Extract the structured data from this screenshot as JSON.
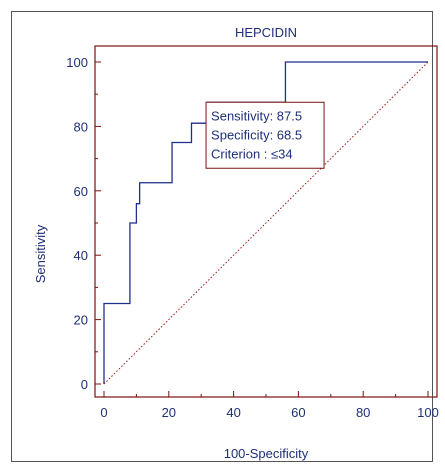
{
  "chart_data": {
    "type": "line",
    "title": "HEPCIDIN",
    "xlabel": "100-Specificity",
    "ylabel": "Sensitivity",
    "xlim": [
      0,
      100
    ],
    "ylim": [
      0,
      100
    ],
    "xticks": [
      0,
      20,
      40,
      60,
      80,
      100
    ],
    "yticks": [
      0,
      20,
      40,
      60,
      80,
      100
    ],
    "grid": false,
    "series": [
      {
        "style": "step",
        "color": "#1f2f8c",
        "x": [
          0,
          0,
          8,
          8,
          10,
          10,
          11,
          11,
          21,
          21,
          27,
          27,
          32,
          32,
          56,
          56,
          100
        ],
        "y": [
          0,
          25,
          25,
          50,
          50,
          56,
          56,
          62.5,
          62.5,
          75,
          75,
          81,
          81,
          87.5,
          87.5,
          100,
          100
        ]
      },
      {
        "style": "dotted",
        "color": "#a01818",
        "x": [
          0,
          100
        ],
        "y": [
          0,
          100
        ]
      }
    ],
    "annotation": {
      "lines": [
        "Sensitivity: 87.5",
        "Specificity: 68.5",
        "Criterion : ≤34"
      ],
      "anchor_x": 31.5,
      "anchor_y": 87.5
    },
    "colors": {
      "axis": "#7a1010",
      "text": "#1f2f7a",
      "roc_line": "#1f2f8c",
      "reference_line": "#a01818"
    }
  }
}
